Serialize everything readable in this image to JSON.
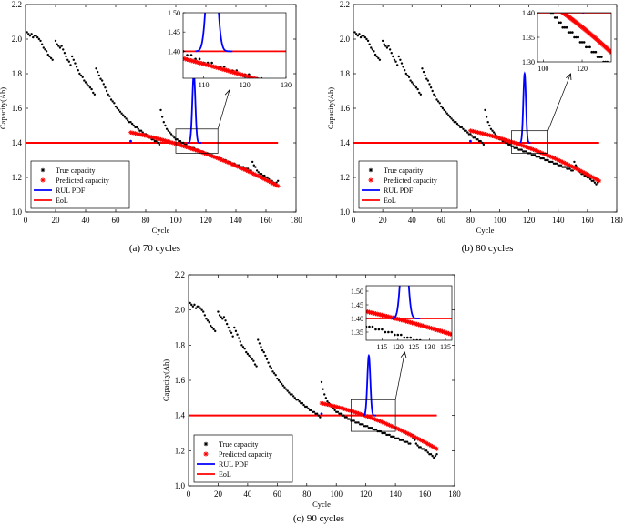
{
  "figure": {
    "title": ""
  },
  "chart_data": [
    {
      "id": "a",
      "type": "scatter",
      "caption": "(a) 70 cycles",
      "xlabel": "Cycle",
      "ylabel": "Capacity(Ah)",
      "xlim": [
        0,
        180
      ],
      "ylim": [
        1.0,
        2.2
      ],
      "xticks": [
        0,
        20,
        40,
        60,
        80,
        100,
        120,
        140,
        160,
        180
      ],
      "yticks": [
        1.0,
        1.2,
        1.4,
        1.6,
        1.8,
        2.0,
        2.2
      ],
      "legend": {
        "position": "bottom-left",
        "entries": [
          "True capacity",
          "Predicted capacity",
          "RUL PDF",
          "EoL"
        ]
      },
      "eol": 1.4,
      "start_cycle": 70,
      "predicted": {
        "x0": 70,
        "y0": 1.46,
        "x1": 168,
        "y1": 1.15
      },
      "rul_pdf": {
        "center": 112,
        "width": 1.0,
        "peak": 1.8,
        "base": 1.4,
        "range": [
          108,
          117
        ]
      },
      "zoom_box": {
        "x": [
          100,
          128
        ],
        "y": [
          1.34,
          1.48
        ]
      },
      "inset": {
        "xlim": [
          105,
          130
        ],
        "ylim": [
          1.33,
          1.5
        ],
        "xticks": [
          110,
          120,
          130
        ],
        "yticks": [
          1.4,
          1.45,
          1.5
        ],
        "ytick_labels": [
          "1.40",
          "1.45",
          "1.50"
        ]
      }
    },
    {
      "id": "b",
      "type": "scatter",
      "caption": "(b) 80 cycles",
      "xlabel": "Cycle",
      "ylabel": "Capacity(Ah)",
      "xlim": [
        0,
        180
      ],
      "ylim": [
        1.0,
        2.2
      ],
      "xticks": [
        0,
        20,
        40,
        60,
        80,
        100,
        120,
        140,
        160,
        180
      ],
      "yticks": [
        1.0,
        1.2,
        1.4,
        1.6,
        1.8,
        2.0,
        2.2
      ],
      "legend": {
        "position": "bottom-left",
        "entries": [
          "True capacity",
          "Predicted capacity",
          "RUL PDF",
          "EoL"
        ]
      },
      "eol": 1.4,
      "start_cycle": 80,
      "predicted": {
        "x0": 80,
        "y0": 1.47,
        "x1": 168,
        "y1": 1.18
      },
      "rul_pdf": {
        "center": 117,
        "width": 0.9,
        "peak": 1.8,
        "base": 1.4,
        "range": [
          114,
          121
        ]
      },
      "zoom_box": {
        "x": [
          108,
          133
        ],
        "y": [
          1.34,
          1.47
        ]
      },
      "inset": {
        "xlim": [
          97,
          135
        ],
        "ylim": [
          1.3,
          1.4
        ],
        "xticks": [
          100,
          120
        ],
        "yticks": [
          1.3,
          1.35,
          1.4
        ],
        "ytick_labels": [
          "1.30",
          "1.35",
          "1.40"
        ]
      }
    },
    {
      "id": "c",
      "type": "scatter",
      "caption": "(c) 90 cycles",
      "xlabel": "Cycle",
      "ylabel": "Capacity(Ah)",
      "xlim": [
        0,
        180
      ],
      "ylim": [
        1.0,
        2.2
      ],
      "xticks": [
        0,
        20,
        40,
        60,
        80,
        100,
        120,
        140,
        160,
        180
      ],
      "yticks": [
        1.0,
        1.2,
        1.4,
        1.6,
        1.8,
        2.0,
        2.2
      ],
      "legend": {
        "position": "bottom-left",
        "entries": [
          "True capacity",
          "Predicted capacity",
          "RUL PDF",
          "EoL"
        ]
      },
      "eol": 1.4,
      "start_cycle": 90,
      "predicted": {
        "x0": 90,
        "y0": 1.47,
        "x1": 168,
        "y1": 1.21
      },
      "rul_pdf": {
        "center": 122,
        "width": 1.0,
        "peak": 1.74,
        "base": 1.4,
        "range": [
          118,
          127
        ]
      },
      "zoom_box": {
        "x": [
          110,
          140
        ],
        "y": [
          1.31,
          1.49
        ]
      },
      "inset": {
        "xlim": [
          110,
          137
        ],
        "ylim": [
          1.32,
          1.52
        ],
        "xticks": [
          115,
          120,
          125,
          130,
          135
        ],
        "yticks": [
          1.35,
          1.4,
          1.45,
          1.5
        ],
        "ytick_labels": [
          "1.35",
          "1.40",
          "1.45",
          "1.50"
        ]
      }
    }
  ],
  "true_capacity": {
    "points": [
      [
        1,
        2.04
      ],
      [
        2,
        2.03
      ],
      [
        3,
        2.02
      ],
      [
        4,
        2.03
      ],
      [
        5,
        2.01
      ],
      [
        6,
        2.02
      ],
      [
        7,
        2.02
      ],
      [
        8,
        2.01
      ],
      [
        9,
        2.0
      ],
      [
        10,
        1.99
      ],
      [
        11,
        1.97
      ],
      [
        12,
        1.95
      ],
      [
        13,
        1.94
      ],
      [
        14,
        1.93
      ],
      [
        15,
        1.91
      ],
      [
        16,
        1.9
      ],
      [
        17,
        1.89
      ],
      [
        18,
        1.88
      ],
      [
        20,
        1.99
      ],
      [
        21,
        1.97
      ],
      [
        22,
        1.96
      ],
      [
        23,
        1.95
      ],
      [
        24,
        1.96
      ],
      [
        25,
        1.94
      ],
      [
        26,
        1.92
      ],
      [
        27,
        1.9
      ],
      [
        28,
        1.88
      ],
      [
        29,
        1.87
      ],
      [
        30,
        1.85
      ],
      [
        31,
        1.9
      ],
      [
        32,
        1.88
      ],
      [
        33,
        1.86
      ],
      [
        34,
        1.84
      ],
      [
        35,
        1.82
      ],
      [
        36,
        1.8
      ],
      [
        37,
        1.79
      ],
      [
        38,
        1.78
      ],
      [
        39,
        1.76
      ],
      [
        40,
        1.75
      ],
      [
        41,
        1.74
      ],
      [
        42,
        1.73
      ],
      [
        43,
        1.72
      ],
      [
        44,
        1.71
      ],
      [
        45,
        1.69
      ],
      [
        46,
        1.68
      ],
      [
        47,
        1.83
      ],
      [
        48,
        1.81
      ],
      [
        49,
        1.79
      ],
      [
        50,
        1.77
      ],
      [
        51,
        1.76
      ],
      [
        52,
        1.74
      ],
      [
        53,
        1.72
      ],
      [
        54,
        1.7
      ],
      [
        55,
        1.68
      ],
      [
        56,
        1.67
      ],
      [
        57,
        1.65
      ],
      [
        58,
        1.64
      ],
      [
        59,
        1.63
      ],
      [
        60,
        1.61
      ],
      [
        61,
        1.6
      ],
      [
        62,
        1.59
      ],
      [
        63,
        1.58
      ],
      [
        64,
        1.57
      ],
      [
        65,
        1.56
      ],
      [
        66,
        1.55
      ],
      [
        67,
        1.54
      ],
      [
        68,
        1.53
      ],
      [
        69,
        1.52
      ],
      [
        70,
        1.52
      ],
      [
        71,
        1.51
      ],
      [
        72,
        1.5
      ],
      [
        73,
        1.49
      ],
      [
        74,
        1.49
      ],
      [
        75,
        1.48
      ],
      [
        76,
        1.47
      ],
      [
        77,
        1.47
      ],
      [
        78,
        1.46
      ],
      [
        79,
        1.45
      ],
      [
        80,
        1.45
      ],
      [
        81,
        1.44
      ],
      [
        82,
        1.43
      ],
      [
        83,
        1.43
      ],
      [
        84,
        1.42
      ],
      [
        85,
        1.42
      ],
      [
        86,
        1.41
      ],
      [
        87,
        1.41
      ],
      [
        88,
        1.4
      ],
      [
        89,
        1.39
      ],
      [
        90,
        1.59
      ],
      [
        91,
        1.55
      ],
      [
        92,
        1.52
      ],
      [
        93,
        1.5
      ],
      [
        94,
        1.48
      ],
      [
        95,
        1.47
      ],
      [
        96,
        1.46
      ],
      [
        97,
        1.45
      ],
      [
        98,
        1.44
      ],
      [
        99,
        1.43
      ],
      [
        100,
        1.42
      ],
      [
        101,
        1.42
      ],
      [
        102,
        1.41
      ],
      [
        103,
        1.41
      ],
      [
        104,
        1.4
      ],
      [
        105,
        1.4
      ],
      [
        106,
        1.39
      ],
      [
        107,
        1.39
      ],
      [
        108,
        1.38
      ],
      [
        109,
        1.38
      ],
      [
        110,
        1.37
      ],
      [
        111,
        1.37
      ],
      [
        112,
        1.37
      ],
      [
        113,
        1.36
      ],
      [
        114,
        1.36
      ],
      [
        115,
        1.36
      ],
      [
        116,
        1.35
      ],
      [
        117,
        1.35
      ],
      [
        118,
        1.35
      ],
      [
        119,
        1.34
      ],
      [
        120,
        1.34
      ],
      [
        121,
        1.34
      ],
      [
        122,
        1.33
      ],
      [
        123,
        1.33
      ],
      [
        124,
        1.33
      ],
      [
        125,
        1.32
      ],
      [
        126,
        1.32
      ],
      [
        127,
        1.32
      ],
      [
        128,
        1.31
      ],
      [
        129,
        1.31
      ],
      [
        130,
        1.31
      ],
      [
        131,
        1.3
      ],
      [
        132,
        1.3
      ],
      [
        133,
        1.3
      ],
      [
        134,
        1.29
      ],
      [
        135,
        1.29
      ],
      [
        136,
        1.29
      ],
      [
        137,
        1.28
      ],
      [
        138,
        1.28
      ],
      [
        139,
        1.28
      ],
      [
        140,
        1.27
      ],
      [
        141,
        1.27
      ],
      [
        142,
        1.27
      ],
      [
        143,
        1.26
      ],
      [
        144,
        1.26
      ],
      [
        145,
        1.26
      ],
      [
        146,
        1.25
      ],
      [
        147,
        1.25
      ],
      [
        148,
        1.25
      ],
      [
        149,
        1.24
      ],
      [
        150,
        1.24
      ],
      [
        151,
        1.29
      ],
      [
        152,
        1.27
      ],
      [
        153,
        1.26
      ],
      [
        154,
        1.24
      ],
      [
        155,
        1.23
      ],
      [
        156,
        1.22
      ],
      [
        157,
        1.22
      ],
      [
        158,
        1.21
      ],
      [
        159,
        1.21
      ],
      [
        160,
        1.2
      ],
      [
        161,
        1.2
      ],
      [
        162,
        1.19
      ],
      [
        163,
        1.18
      ],
      [
        164,
        1.18
      ],
      [
        165,
        1.17
      ],
      [
        166,
        1.16
      ],
      [
        167,
        1.17
      ],
      [
        168,
        1.18
      ]
    ]
  }
}
